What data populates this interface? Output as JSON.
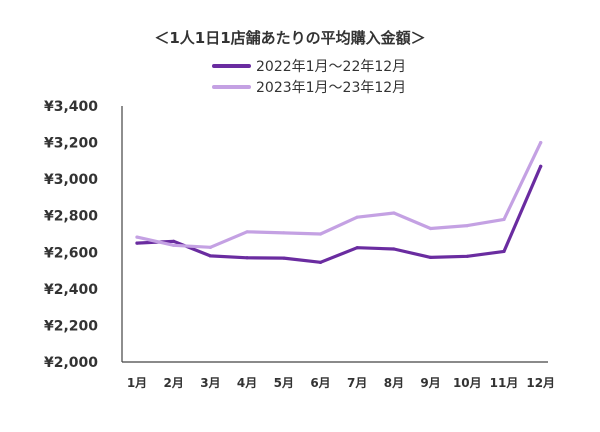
{
  "chart_data": {
    "type": "line",
    "title": "＜1人1日1店舗あたりの平均購入金額＞",
    "categories": [
      "1月",
      "2月",
      "3月",
      "4月",
      "5月",
      "6月",
      "7月",
      "8月",
      "9月",
      "10月",
      "11月",
      "12月"
    ],
    "series": [
      {
        "name": "2022年1月〜22年12月",
        "color": "#6a2ca0",
        "values": [
          2650,
          2660,
          2580,
          2570,
          2568,
          2545,
          2625,
          2618,
          2572,
          2578,
          2605,
          3070
        ]
      },
      {
        "name": "2023年1月〜23年12月",
        "color": "#c4a1e3",
        "values": [
          2683,
          2638,
          2627,
          2712,
          2706,
          2700,
          2792,
          2815,
          2730,
          2746,
          2780,
          3200
        ]
      }
    ],
    "y_ticks": [
      "¥2,000",
      "¥2,200",
      "¥2,400",
      "¥2,600",
      "¥2,800",
      "¥3,000",
      "¥3,200",
      "¥3,400"
    ],
    "ylim": [
      2000,
      3400
    ],
    "grid": false,
    "legend_position": "top-center"
  }
}
